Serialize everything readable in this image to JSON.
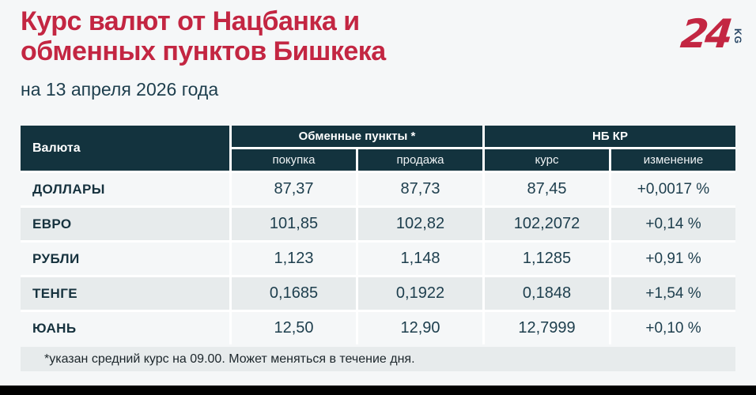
{
  "chart_data": {
    "type": "table",
    "title_line1": "Курс валют от Нацбанка и",
    "title_line2": "обменных пунктов Бишкека",
    "subtitle": "на 13 апреля 2026 года",
    "columns": {
      "currency": "Валюта",
      "group_exchange": "Обменные пункты *",
      "group_nbkr": "НБ КР",
      "sub_buy": "покупка",
      "sub_sell": "продажа",
      "sub_rate": "курс",
      "sub_change": "изменение"
    },
    "rows": [
      {
        "name": "ДОЛЛАРЫ",
        "buy": "87,37",
        "sell": "87,73",
        "rate": "87,45",
        "change": "+0,0017 %"
      },
      {
        "name": "ЕВРО",
        "buy": "101,85",
        "sell": "102,82",
        "rate": "102,2072",
        "change": "+0,14 %"
      },
      {
        "name": "РУБЛИ",
        "buy": "1,123",
        "sell": "1,148",
        "rate": "1,1285",
        "change": "+0,91 %"
      },
      {
        "name": "ТЕНГЕ",
        "buy": "0,1685",
        "sell": "0,1922",
        "rate": "0,1848",
        "change": "+1,54 %"
      },
      {
        "name": "ЮАНЬ",
        "buy": "12,50",
        "sell": "12,90",
        "rate": "12,7999",
        "change": "+0,10 %"
      }
    ],
    "footnote": "*указан средний курс на 09.00. Может меняться в течение дня."
  },
  "logo": {
    "number": "24",
    "suffix": "KG"
  },
  "colors": {
    "page-bg": "#f5f7f8",
    "brand-red": "#c32642",
    "dark-teal": "#13333e",
    "text-dark": "#1d3e4d",
    "row-gray": "#e7ebec",
    "row-light": "#f5f7f8",
    "logo-navy": "#254463",
    "bar-black": "#010101"
  }
}
